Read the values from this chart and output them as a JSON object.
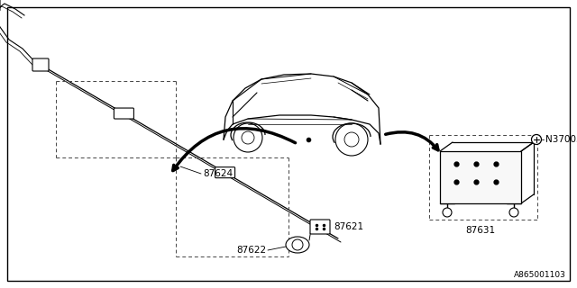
{
  "bg_color": "#ffffff",
  "line_color": "#000000",
  "label_color": "#000000",
  "fig_width": 6.4,
  "fig_height": 3.2,
  "dpi": 100,
  "footer_label": "A865001103"
}
